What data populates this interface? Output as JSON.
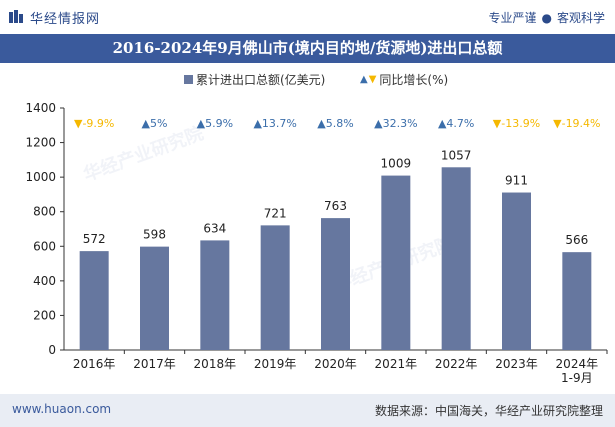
{
  "header": {
    "brand": "华经情报网",
    "slogan_left": "专业严谨",
    "slogan_sep": "●",
    "slogan_right": "客观科学"
  },
  "title": "2016-2024年9月佛山市(境内目的地/货源地)进出口总额",
  "legend": {
    "bar_label": "累计进出口总额(亿美元)",
    "yoy_label": "同比增长(%)"
  },
  "footer": {
    "site": "www.huaon.com",
    "source": "数据来源：中国海关，华经产业研究院整理"
  },
  "watermark": "华经产业研究院",
  "colors": {
    "bar": "#66779f",
    "up": "#3b6eaa",
    "down": "#f5b800",
    "title_bg": "#3a5a9c"
  },
  "chart_data": {
    "type": "bar",
    "categories": [
      "2016年",
      "2017年",
      "2018年",
      "2019年",
      "2020年",
      "2021年",
      "2022年",
      "2023年",
      "2024年\n1-9月"
    ],
    "series": [
      {
        "name": "累计进出口总额(亿美元)",
        "values": [
          572,
          598,
          634,
          721,
          763,
          1009,
          1057,
          911,
          566
        ]
      }
    ],
    "yoy": {
      "name": "同比增长(%)",
      "values": [
        -9.9,
        5,
        5.9,
        13.7,
        5.8,
        32.3,
        4.7,
        -13.9,
        -19.4
      ],
      "labels": [
        "-9.9%",
        "5%",
        "5.9%",
        "13.7%",
        "5.8%",
        "32.3%",
        "4.7%",
        "-13.9%",
        "-19.4%"
      ]
    },
    "ylim": [
      0,
      1400
    ],
    "yticks": [
      0,
      200,
      400,
      600,
      800,
      1000,
      1200,
      1400
    ],
    "grid": false,
    "legend_position": "top-center"
  }
}
